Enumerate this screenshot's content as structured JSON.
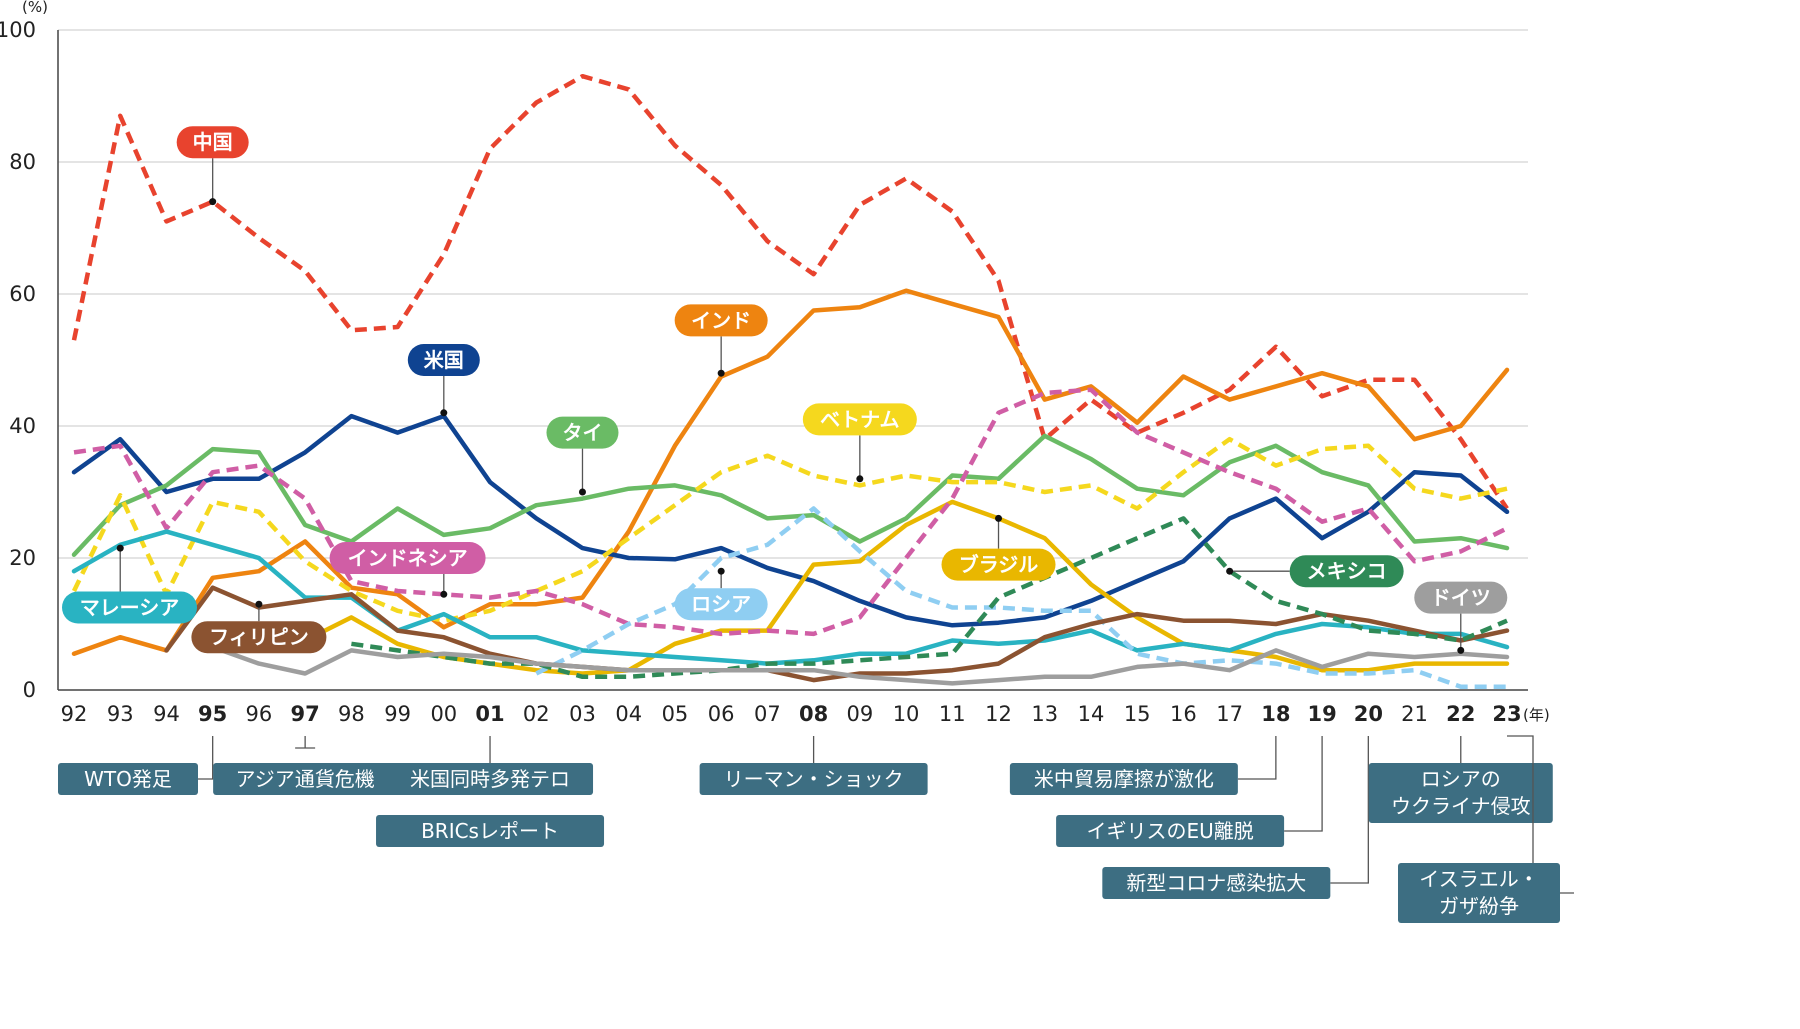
{
  "chart_data": {
    "type": "line",
    "y_unit": "(%)",
    "x_unit": "(年)",
    "ylim": [
      0,
      100
    ],
    "yticks": [
      0,
      20,
      40,
      60,
      80,
      100
    ],
    "categories": [
      "92",
      "93",
      "94",
      "95",
      "96",
      "97",
      "98",
      "99",
      "00",
      "01",
      "02",
      "03",
      "04",
      "05",
      "06",
      "07",
      "08",
      "09",
      "10",
      "11",
      "12",
      "13",
      "14",
      "15",
      "16",
      "17",
      "18",
      "19",
      "20",
      "21",
      "22",
      "23"
    ],
    "bold_categories": [
      "95",
      "97",
      "01",
      "08",
      "18",
      "19",
      "20",
      "22",
      "23"
    ],
    "grid": true,
    "series": [
      {
        "name": "中国",
        "color": "#e8432e",
        "dashed": true,
        "label_color": "#e8432e",
        "label_text_color": "#ffffff",
        "values": [
          53,
          87,
          71,
          74,
          68.5,
          63.5,
          54.5,
          55,
          66,
          82,
          89,
          93,
          91,
          82.5,
          76.5,
          68,
          63,
          73.5,
          77.5,
          72.5,
          62,
          38,
          44,
          39,
          42,
          45.5,
          52,
          44.5,
          47,
          47,
          38,
          27.5
        ]
      },
      {
        "name": "インド",
        "color": "#ee8410",
        "dashed": false,
        "label_color": "#ee8410",
        "label_text_color": "#ffffff",
        "values": [
          5.5,
          8,
          6,
          17,
          18,
          22.5,
          15.5,
          14.5,
          9.5,
          13,
          13,
          14,
          24,
          37,
          47.5,
          50.5,
          57.5,
          58,
          60.5,
          58.5,
          56.5,
          44,
          46,
          40.5,
          47.5,
          44,
          46,
          48,
          46,
          38,
          40,
          48.5
        ]
      },
      {
        "name": "米国",
        "color": "#0f4391",
        "dashed": false,
        "label_color": "#0f4391",
        "label_text_color": "#ffffff",
        "values": [
          33,
          38,
          30,
          32,
          32,
          36,
          41.5,
          39,
          41.5,
          31.5,
          26,
          21.5,
          20,
          19.8,
          21.5,
          18.5,
          16.5,
          13.5,
          11,
          9.8,
          10.2,
          11,
          13.5,
          16.5,
          19.5,
          26,
          29,
          23,
          27,
          33,
          32.5,
          27
        ]
      },
      {
        "name": "タイ",
        "color": "#6abb65",
        "dashed": false,
        "label_color": "#6abb65",
        "label_text_color": "#ffffff",
        "values": [
          20.5,
          28,
          31,
          36.5,
          36,
          25,
          22.5,
          27.5,
          23.5,
          24.5,
          28,
          29,
          30.5,
          31,
          29.5,
          26,
          26.5,
          22.5,
          26,
          32.5,
          32,
          38.5,
          35,
          30.5,
          29.5,
          34.5,
          37,
          33,
          31,
          22.5,
          23,
          21.5
        ]
      },
      {
        "name": "ベトナム",
        "color": "#f5d81e",
        "dashed": true,
        "label_color": "#f5d81e",
        "label_text_color": "#333333",
        "values": [
          15,
          29.5,
          14.5,
          28.5,
          27,
          19.5,
          15,
          12,
          10.5,
          12,
          15,
          18,
          23,
          28,
          33,
          35.5,
          32.5,
          31,
          32.5,
          31.5,
          31.5,
          30,
          31,
          27.5,
          33,
          38,
          34,
          36.5,
          37,
          30.5,
          29,
          30.5
        ]
      },
      {
        "name": "ブラジル",
        "color": "#e9b700",
        "dashed": false,
        "label_color": "#e9b700",
        "label_text_color": "#ffffff",
        "values": [
          null,
          null,
          null,
          null,
          null,
          7.5,
          11,
          7,
          5,
          4,
          3,
          2.5,
          3,
          7,
          9,
          9,
          19,
          19.5,
          25,
          28.5,
          26,
          23,
          16,
          11,
          7,
          6,
          5,
          3,
          3,
          4,
          4,
          4
        ]
      },
      {
        "name": "インドネシア",
        "color": "#d05ea5",
        "dashed": true,
        "label_color": "#d05ea5",
        "label_text_color": "#ffffff",
        "values": [
          36,
          37,
          24.5,
          33,
          34,
          29,
          16.5,
          15,
          14.5,
          14,
          15,
          13,
          10,
          9.5,
          8.5,
          9,
          8.5,
          11,
          20,
          29,
          42,
          45,
          45.5,
          39,
          36,
          33,
          30.5,
          25.5,
          27.5,
          19.5,
          21,
          24.5
        ]
      },
      {
        "name": "マレーシア",
        "color": "#29b3c2",
        "dashed": false,
        "label_color": "#29b3c2",
        "label_text_color": "#ffffff",
        "values": [
          18,
          22,
          24,
          22,
          20,
          14,
          14,
          9,
          11.5,
          8,
          8,
          6,
          5.5,
          5,
          4.5,
          4,
          4.5,
          5.5,
          5.5,
          7.5,
          7,
          7.5,
          9,
          6,
          7,
          6,
          8.5,
          10,
          9.5,
          8.5,
          8.5,
          6.5
        ]
      },
      {
        "name": "ロシア",
        "color": "#8fcef2",
        "dashed": true,
        "label_color": "#8fcef2",
        "label_text_color": "#ffffff",
        "values": [
          null,
          null,
          null,
          null,
          null,
          null,
          null,
          null,
          null,
          null,
          2.5,
          6,
          10,
          13,
          20,
          22,
          27.5,
          21,
          15,
          12.5,
          12.5,
          12,
          12,
          5.5,
          4,
          4.5,
          4,
          2.5,
          2.5,
          3,
          0.5,
          0.5
        ]
      },
      {
        "name": "フィリピン",
        "color": "#8b5331",
        "dashed": false,
        "label_color": "#8b5331",
        "label_text_color": "#ffffff",
        "values": [
          null,
          null,
          6,
          15.5,
          12.5,
          13.5,
          14.5,
          9,
          8,
          5.5,
          4,
          3.5,
          3,
          3,
          3,
          3,
          1.5,
          2.5,
          2.5,
          3,
          4,
          8,
          10,
          11.5,
          10.5,
          10.5,
          10,
          11.5,
          10.5,
          9,
          7.5,
          9
        ]
      },
      {
        "name": "メキシコ",
        "color": "#2f8a57",
        "dashed": true,
        "label_color": "#2f8a57",
        "label_text_color": "#ffffff",
        "values": [
          null,
          null,
          null,
          null,
          null,
          null,
          7,
          6,
          5,
          4,
          4,
          2,
          2,
          2.5,
          3,
          4,
          4,
          4.5,
          5,
          5.5,
          14,
          17,
          20,
          23,
          26,
          18,
          13.5,
          11.5,
          9,
          8.5,
          7.5,
          10.5
        ]
      },
      {
        "name": "ドイツ",
        "color": "#9e9e9e",
        "dashed": false,
        "label_color": "#9e9e9e",
        "label_text_color": "#ffffff",
        "values": [
          null,
          null,
          null,
          6.5,
          4,
          2.5,
          6,
          5,
          5.5,
          5,
          4,
          3.5,
          3,
          3,
          3,
          3,
          3,
          2,
          1.5,
          1,
          1.5,
          2,
          2,
          3.5,
          4,
          3,
          6,
          3.5,
          5.5,
          5,
          5.5,
          5
        ]
      }
    ],
    "series_callouts": [
      {
        "series": "中国",
        "anchor_x": "95",
        "anchor_y": 74,
        "label_x": "95",
        "label_y": 83
      },
      {
        "series": "インド",
        "anchor_x": "06",
        "anchor_y": 48,
        "label_x": "06",
        "label_y": 56
      },
      {
        "series": "米国",
        "anchor_x": "00",
        "anchor_y": 42,
        "label_x": "00",
        "label_y": 50
      },
      {
        "series": "タイ",
        "anchor_x": "03",
        "anchor_y": 30,
        "label_x": "03",
        "label_y": 39
      },
      {
        "series": "ベトナム",
        "anchor_x": "09",
        "anchor_y": 32,
        "label_x": "09",
        "label_y": 41
      },
      {
        "series": "ブラジル",
        "anchor_x": "12",
        "anchor_y": 26,
        "label_x": "12",
        "label_y": 19
      },
      {
        "series": "インドネシア",
        "anchor_x": "00",
        "anchor_y": 14.5,
        "label_x": "99",
        "label_y": 20
      },
      {
        "series": "マレーシア",
        "anchor_x": "93",
        "anchor_y": 21.5,
        "label_x": "93",
        "label_y": 12.5
      },
      {
        "series": "ロシア",
        "anchor_x": "06",
        "anchor_y": 18,
        "label_x": "06",
        "label_y": 13
      },
      {
        "series": "フィリピン",
        "anchor_x": "96",
        "anchor_y": 13,
        "label_x": "96",
        "label_y": 8
      },
      {
        "series": "メキシコ",
        "anchor_x": "17",
        "anchor_y": 18,
        "label_x": "19",
        "label_y": 18
      },
      {
        "series": "ドイツ",
        "anchor_x": "22",
        "anchor_y": 6,
        "label_x": "22",
        "label_y": 14
      }
    ],
    "events": [
      {
        "label": "WTO発足",
        "year": "95",
        "side": "left"
      },
      {
        "label": "アジア通貨危機",
        "year": "97",
        "side": "center"
      },
      {
        "label": "米国同時多発テロ",
        "year": "01",
        "side": "center"
      },
      {
        "label": "BRICsレポート",
        "year": "01",
        "side": "center-2"
      },
      {
        "label": "リーマン・ショック",
        "year": "08",
        "side": "center"
      },
      {
        "label": "米中貿易摩擦が激化",
        "year": "18",
        "side": "left"
      },
      {
        "label": "イギリスのEU離脱",
        "year": "19",
        "side": "left"
      },
      {
        "label": "新型コロナ感染拡大",
        "year": "20",
        "side": "left"
      },
      {
        "label": "ロシアの\nウクライナ侵攻",
        "year": "22",
        "side": "center"
      },
      {
        "label": "イスラエル・\nガザ紛争",
        "year": "23",
        "side": "right"
      }
    ],
    "event_box_color": "#3d6e82"
  }
}
